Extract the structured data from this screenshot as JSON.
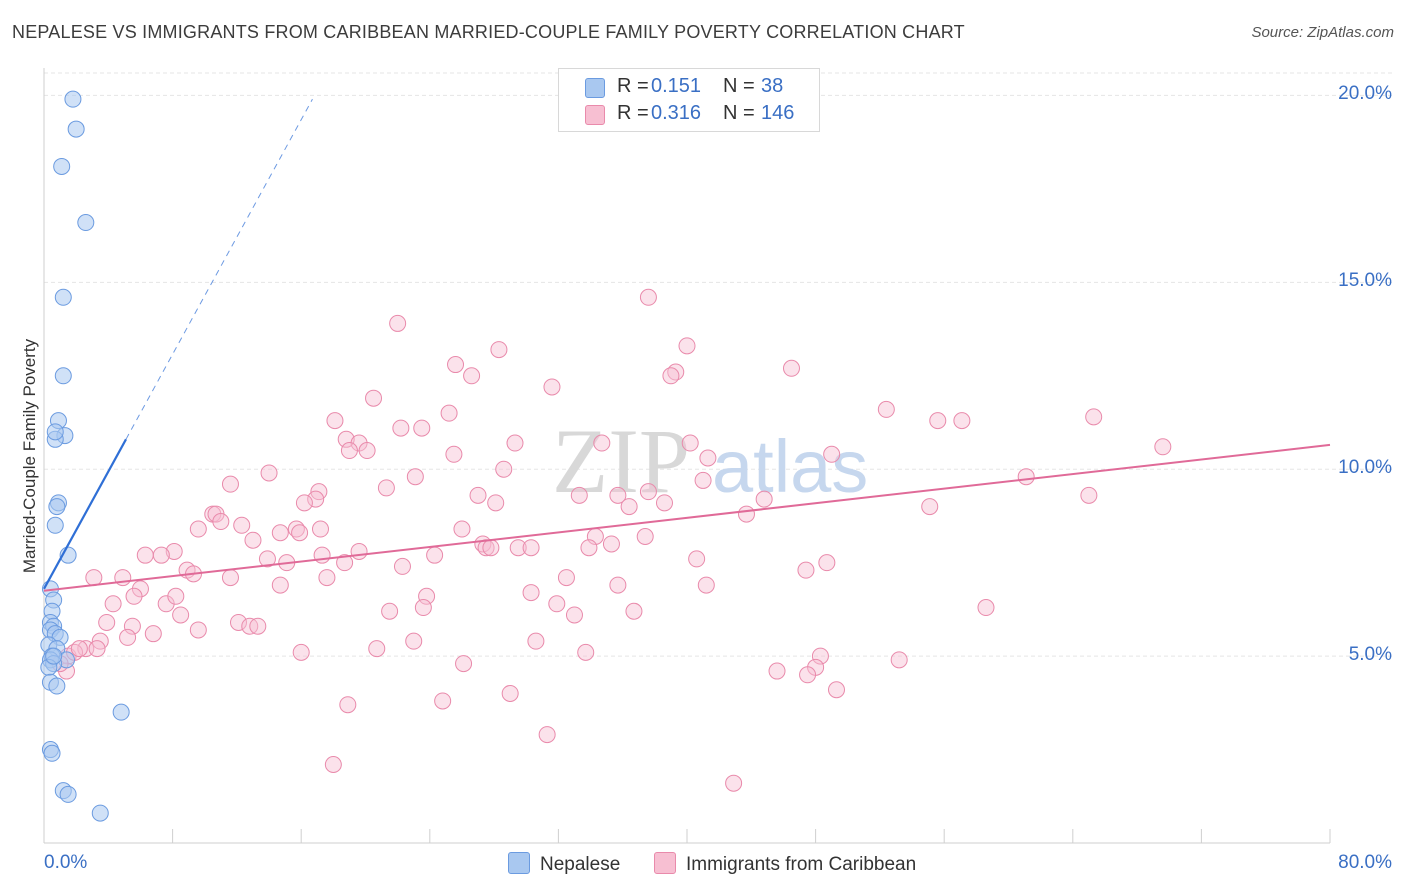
{
  "title": "NEPALESE VS IMMIGRANTS FROM CARIBBEAN MARRIED-COUPLE FAMILY POVERTY CORRELATION CHART",
  "source": "Source: ZipAtlas.com",
  "watermark": {
    "zip": "ZIP",
    "atlas": "atlas"
  },
  "colors": {
    "blue_fill": "#a9c8f0",
    "blue_stroke": "#6b9be0",
    "blue_line": "#2f6fd6",
    "pink_fill": "#f7bfd2",
    "pink_stroke": "#e98aab",
    "pink_line": "#e06a98",
    "grid": "#e5e5e5",
    "axis_text": "#3a6fc4"
  },
  "legend": {
    "rows": [
      {
        "r_label": "R =",
        "r_value": "0.151",
        "n_label": "N =",
        "n_value": "38"
      },
      {
        "r_label": "R =",
        "r_value": "0.316",
        "n_label": "N =",
        "n_value": "146"
      }
    ]
  },
  "bottom_legend": {
    "series1": "Nepalese",
    "series2": "Immigrants from Caribbean"
  },
  "chart_data": {
    "type": "scatter",
    "title": "NEPALESE VS IMMIGRANTS FROM CARIBBEAN MARRIED-COUPLE FAMILY POVERTY CORRELATION CHART",
    "xlabel": "",
    "ylabel": "Married-Couple Family Poverty",
    "xlim": [
      0,
      80
    ],
    "ylim": [
      0,
      20.6
    ],
    "x_tick_labels": {
      "min": "0.0%",
      "max": "80.0%"
    },
    "y_ticks": [
      5,
      10,
      15,
      20
    ],
    "y_tick_labels": [
      "5.0%",
      "10.0%",
      "15.0%",
      "20.0%"
    ],
    "grid": true,
    "series": [
      {
        "name": "Nepalese",
        "r": 0.151,
        "n": 38,
        "trend": {
          "x1": 0,
          "y1": 6.8,
          "x2": 5.1,
          "y2": 10.8,
          "dash_to_x": 16.7,
          "dash_to_y": 19.9
        },
        "points": [
          [
            1.8,
            19.9
          ],
          [
            2.0,
            19.1
          ],
          [
            1.1,
            18.1
          ],
          [
            2.6,
            16.6
          ],
          [
            1.2,
            14.6
          ],
          [
            1.2,
            12.5
          ],
          [
            0.9,
            11.3
          ],
          [
            1.3,
            10.9
          ],
          [
            0.7,
            10.8
          ],
          [
            0.7,
            11.0
          ],
          [
            0.9,
            9.1
          ],
          [
            0.8,
            9.0
          ],
          [
            0.7,
            8.5
          ],
          [
            1.5,
            7.7
          ],
          [
            0.4,
            6.8
          ],
          [
            0.6,
            6.5
          ],
          [
            0.5,
            6.2
          ],
          [
            0.4,
            5.9
          ],
          [
            0.6,
            5.8
          ],
          [
            0.4,
            5.7
          ],
          [
            0.7,
            5.6
          ],
          [
            1.0,
            5.5
          ],
          [
            0.3,
            5.3
          ],
          [
            0.8,
            5.2
          ],
          [
            0.5,
            5.0
          ],
          [
            0.4,
            4.9
          ],
          [
            1.4,
            4.9
          ],
          [
            0.6,
            4.8
          ],
          [
            0.3,
            4.7
          ],
          [
            0.4,
            4.3
          ],
          [
            0.8,
            4.2
          ],
          [
            4.8,
            3.5
          ],
          [
            0.4,
            2.5
          ],
          [
            0.5,
            2.4
          ],
          [
            1.2,
            1.4
          ],
          [
            1.5,
            1.3
          ],
          [
            3.5,
            0.8
          ],
          [
            0.6,
            5.0
          ]
        ]
      },
      {
        "name": "Immigrants from Caribbean",
        "r": 0.316,
        "n": 146,
        "trend": {
          "x1": 0,
          "y1": 6.75,
          "x2": 80,
          "y2": 10.65
        },
        "points": [
          [
            37.6,
            14.6
          ],
          [
            22.0,
            13.9
          ],
          [
            28.3,
            13.2
          ],
          [
            40.0,
            13.3
          ],
          [
            25.6,
            12.8
          ],
          [
            26.6,
            12.5
          ],
          [
            39.3,
            12.6
          ],
          [
            39.0,
            12.5
          ],
          [
            46.5,
            12.7
          ],
          [
            31.6,
            12.2
          ],
          [
            20.5,
            11.9
          ],
          [
            52.4,
            11.6
          ],
          [
            25.2,
            11.5
          ],
          [
            18.1,
            11.3
          ],
          [
            55.6,
            11.3
          ],
          [
            57.1,
            11.3
          ],
          [
            65.3,
            11.4
          ],
          [
            22.2,
            11.1
          ],
          [
            23.5,
            11.1
          ],
          [
            18.8,
            10.8
          ],
          [
            19.6,
            10.7
          ],
          [
            29.3,
            10.7
          ],
          [
            34.7,
            10.7
          ],
          [
            40.2,
            10.7
          ],
          [
            49.0,
            10.4
          ],
          [
            69.6,
            10.6
          ],
          [
            19.0,
            10.5
          ],
          [
            20.1,
            10.5
          ],
          [
            25.5,
            10.4
          ],
          [
            41.3,
            10.3
          ],
          [
            28.6,
            10.0
          ],
          [
            14.0,
            9.9
          ],
          [
            23.1,
            9.8
          ],
          [
            41.0,
            9.7
          ],
          [
            61.1,
            9.8
          ],
          [
            11.6,
            9.6
          ],
          [
            21.3,
            9.5
          ],
          [
            17.1,
            9.4
          ],
          [
            27.0,
            9.3
          ],
          [
            33.3,
            9.3
          ],
          [
            35.7,
            9.3
          ],
          [
            37.6,
            9.4
          ],
          [
            38.6,
            9.1
          ],
          [
            16.9,
            9.2
          ],
          [
            16.2,
            9.1
          ],
          [
            28.1,
            9.1
          ],
          [
            36.4,
            9.0
          ],
          [
            44.8,
            9.2
          ],
          [
            55.1,
            9.0
          ],
          [
            65.0,
            9.3
          ],
          [
            10.5,
            8.8
          ],
          [
            10.7,
            8.8
          ],
          [
            43.7,
            8.8
          ],
          [
            11.0,
            8.6
          ],
          [
            9.6,
            8.4
          ],
          [
            12.3,
            8.5
          ],
          [
            15.7,
            8.4
          ],
          [
            17.2,
            8.4
          ],
          [
            26.0,
            8.4
          ],
          [
            34.3,
            8.2
          ],
          [
            15.9,
            8.3
          ],
          [
            13.0,
            8.1
          ],
          [
            14.7,
            8.3
          ],
          [
            37.4,
            8.2
          ],
          [
            27.3,
            8.0
          ],
          [
            27.5,
            7.9
          ],
          [
            27.8,
            7.9
          ],
          [
            29.5,
            7.9
          ],
          [
            30.3,
            7.9
          ],
          [
            33.9,
            7.9
          ],
          [
            35.3,
            8.0
          ],
          [
            19.6,
            7.8
          ],
          [
            8.1,
            7.8
          ],
          [
            6.3,
            7.7
          ],
          [
            7.3,
            7.7
          ],
          [
            17.3,
            7.7
          ],
          [
            24.3,
            7.7
          ],
          [
            40.6,
            7.6
          ],
          [
            48.7,
            7.5
          ],
          [
            8.9,
            7.3
          ],
          [
            13.9,
            7.6
          ],
          [
            15.1,
            7.5
          ],
          [
            18.7,
            7.5
          ],
          [
            22.3,
            7.4
          ],
          [
            9.3,
            7.2
          ],
          [
            3.1,
            7.1
          ],
          [
            4.9,
            7.1
          ],
          [
            11.6,
            7.1
          ],
          [
            17.6,
            7.1
          ],
          [
            32.5,
            7.1
          ],
          [
            47.4,
            7.3
          ],
          [
            14.7,
            6.9
          ],
          [
            35.7,
            6.9
          ],
          [
            41.2,
            6.9
          ],
          [
            6.0,
            6.8
          ],
          [
            5.6,
            6.6
          ],
          [
            30.3,
            6.7
          ],
          [
            7.6,
            6.4
          ],
          [
            8.2,
            6.6
          ],
          [
            23.8,
            6.6
          ],
          [
            31.9,
            6.4
          ],
          [
            4.3,
            6.4
          ],
          [
            21.5,
            6.2
          ],
          [
            23.6,
            6.3
          ],
          [
            36.7,
            6.2
          ],
          [
            58.6,
            6.3
          ],
          [
            33.0,
            6.1
          ],
          [
            3.9,
            5.9
          ],
          [
            8.5,
            6.1
          ],
          [
            9.6,
            5.7
          ],
          [
            12.1,
            5.9
          ],
          [
            12.8,
            5.8
          ],
          [
            13.3,
            5.8
          ],
          [
            5.5,
            5.8
          ],
          [
            6.8,
            5.6
          ],
          [
            5.2,
            5.5
          ],
          [
            3.5,
            5.4
          ],
          [
            23.0,
            5.4
          ],
          [
            30.6,
            5.4
          ],
          [
            2.6,
            5.2
          ],
          [
            3.3,
            5.2
          ],
          [
            16.0,
            5.1
          ],
          [
            20.7,
            5.2
          ],
          [
            33.7,
            5.1
          ],
          [
            1.5,
            5.0
          ],
          [
            1.9,
            5.1
          ],
          [
            2.2,
            5.2
          ],
          [
            48.3,
            5.0
          ],
          [
            26.1,
            4.8
          ],
          [
            53.2,
            4.9
          ],
          [
            45.6,
            4.6
          ],
          [
            48.0,
            4.7
          ],
          [
            1.4,
            4.6
          ],
          [
            1.0,
            4.8
          ],
          [
            47.5,
            4.5
          ],
          [
            29.0,
            4.0
          ],
          [
            49.3,
            4.1
          ],
          [
            18.9,
            3.7
          ],
          [
            24.8,
            3.8
          ],
          [
            31.3,
            2.9
          ],
          [
            18.0,
            2.1
          ],
          [
            42.9,
            1.6
          ]
        ]
      }
    ]
  }
}
